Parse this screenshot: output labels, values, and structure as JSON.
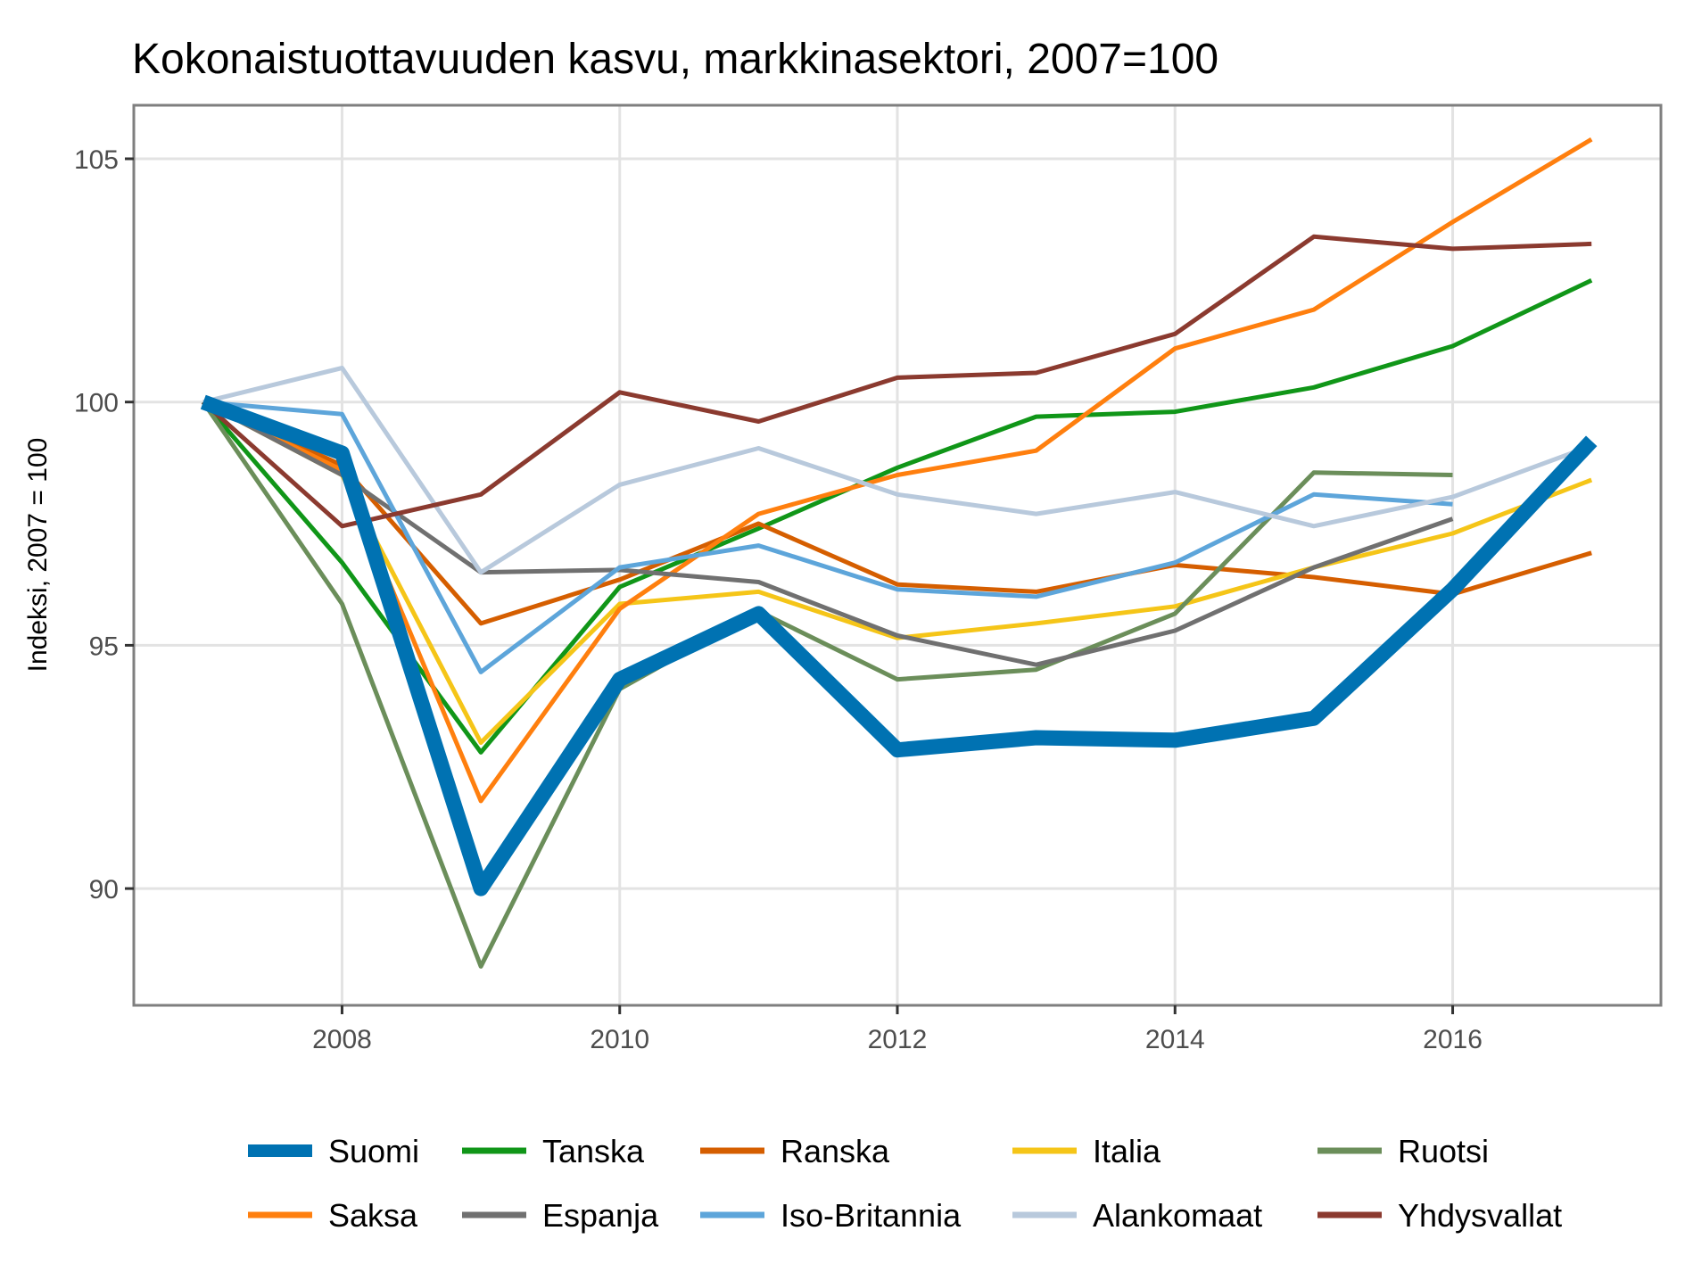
{
  "chart_data": {
    "type": "line",
    "title": "Kokonaistuottavuuden kasvu, markkinasektori, 2007=100",
    "xlabel": "",
    "ylabel": "Indeksi, 2007 = 100",
    "xlim": [
      2006.5,
      2017.5
    ],
    "ylim": [
      87.6,
      106.1
    ],
    "x_ticks": [
      2008,
      2010,
      2012,
      2014,
      2016
    ],
    "y_ticks": [
      90,
      95,
      100,
      105
    ],
    "grid": true,
    "legend_position": "bottom",
    "series": [
      {
        "name": "Suomi",
        "color": "#0072B2",
        "emphasis": true,
        "x": [
          2007,
          2008,
          2009,
          2010,
          2011,
          2012,
          2013,
          2014,
          2015,
          2016,
          2017
        ],
        "y": [
          100.0,
          98.95,
          90.0,
          94.3,
          95.65,
          92.85,
          93.1,
          93.05,
          93.5,
          96.15,
          99.2
        ]
      },
      {
        "name": "Tanska",
        "color": "#109618",
        "x": [
          2007,
          2008,
          2009,
          2010,
          2011,
          2012,
          2013,
          2014,
          2015,
          2016,
          2017
        ],
        "y": [
          100.0,
          96.7,
          92.8,
          96.2,
          97.4,
          98.65,
          99.7,
          99.8,
          100.3,
          101.15,
          102.5
        ]
      },
      {
        "name": "Ranska",
        "color": "#D55E00",
        "x": [
          2007,
          2008,
          2009,
          2010,
          2011,
          2012,
          2013,
          2014,
          2015,
          2016,
          2017
        ],
        "y": [
          100.0,
          98.7,
          95.45,
          96.35,
          97.5,
          96.25,
          96.1,
          96.65,
          96.4,
          96.05,
          96.9
        ]
      },
      {
        "name": "Italia",
        "color": "#F5C518",
        "x": [
          2007,
          2008,
          2009,
          2010,
          2011,
          2012,
          2013,
          2014,
          2015,
          2016,
          2017
        ],
        "y": [
          100.0,
          98.5,
          93.0,
          95.85,
          96.1,
          95.15,
          95.45,
          95.8,
          96.6,
          97.3,
          98.4
        ]
      },
      {
        "name": "Ruotsi",
        "color": "#6B8E5A",
        "x": [
          2007,
          2008,
          2009,
          2010,
          2011,
          2012,
          2013,
          2014,
          2015,
          2016
        ],
        "y": [
          100.0,
          95.85,
          88.4,
          94.1,
          95.7,
          94.3,
          94.5,
          95.65,
          98.55,
          98.5
        ]
      },
      {
        "name": "Saksa",
        "color": "#FF7F0E",
        "x": [
          2007,
          2008,
          2009,
          2010,
          2011,
          2012,
          2013,
          2014,
          2015,
          2016,
          2017
        ],
        "y": [
          100.0,
          98.6,
          91.8,
          95.75,
          97.7,
          98.5,
          99.0,
          101.1,
          101.9,
          103.7,
          105.4
        ]
      },
      {
        "name": "Espanja",
        "color": "#707070",
        "x": [
          2007,
          2008,
          2009,
          2010,
          2011,
          2012,
          2013,
          2014,
          2015,
          2016
        ],
        "y": [
          100.0,
          98.5,
          96.5,
          96.55,
          96.3,
          95.2,
          94.6,
          95.3,
          96.6,
          97.6
        ]
      },
      {
        "name": "Iso-Britannia",
        "color": "#5DA5DA",
        "x": [
          2007,
          2008,
          2009,
          2010,
          2011,
          2012,
          2013,
          2014,
          2015,
          2016
        ],
        "y": [
          100.0,
          99.75,
          94.45,
          96.6,
          97.05,
          96.15,
          96.0,
          96.7,
          98.1,
          97.9
        ]
      },
      {
        "name": "Alankomaat",
        "color": "#B8C9DC",
        "x": [
          2007,
          2008,
          2009,
          2010,
          2011,
          2012,
          2013,
          2014,
          2015,
          2016,
          2017
        ],
        "y": [
          100.0,
          100.7,
          96.5,
          98.3,
          99.05,
          98.1,
          97.7,
          98.15,
          97.45,
          98.05,
          99.1
        ]
      },
      {
        "name": "Yhdysvallat",
        "color": "#8B3A2F",
        "x": [
          2007,
          2008,
          2009,
          2010,
          2011,
          2012,
          2013,
          2014,
          2015,
          2016,
          2017
        ],
        "y": [
          100.0,
          97.45,
          98.1,
          100.2,
          99.6,
          100.5,
          100.6,
          101.4,
          103.4,
          103.15,
          103.25
        ]
      }
    ]
  }
}
